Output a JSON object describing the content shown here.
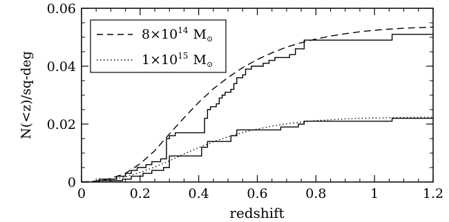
{
  "chart_data": {
    "type": "line",
    "xlabel": "redshift",
    "ylabel": "N(<z)/sq-deg",
    "xlim": [
      0,
      1.2
    ],
    "ylim": [
      0,
      0.06
    ],
    "x_ticks": [
      "0",
      "0.2",
      "0.4",
      "0.6",
      "0.8",
      "1",
      "1.2"
    ],
    "y_ticks": [
      "0",
      "0.02",
      "0.04",
      "0.06"
    ],
    "legend_position": "top-left",
    "legend": [
      {
        "style": "dashed",
        "label_prefix": "8×10",
        "label_exp": "14",
        "label_unit": "M",
        "label_sub": "⊙"
      },
      {
        "style": "dotted",
        "label_prefix": "1×10",
        "label_exp": "15",
        "label_unit": "M",
        "label_sub": "⊙"
      }
    ],
    "series": [
      {
        "style": "dashed",
        "x": [
          0,
          0.05,
          0.1,
          0.15,
          0.2,
          0.25,
          0.3,
          0.35,
          0.4,
          0.45,
          0.5,
          0.55,
          0.6,
          0.65,
          0.7,
          0.75,
          0.8,
          0.85,
          0.9,
          0.95,
          1.0,
          1.05,
          1.1,
          1.15,
          1.2
        ],
        "y": [
          0,
          0.0003,
          0.0012,
          0.003,
          0.0063,
          0.0108,
          0.0166,
          0.0222,
          0.0275,
          0.0322,
          0.0361,
          0.0395,
          0.0423,
          0.0446,
          0.0466,
          0.0481,
          0.0494,
          0.0504,
          0.0512,
          0.0519,
          0.0524,
          0.0528,
          0.0531,
          0.0533,
          0.0535
        ]
      },
      {
        "style": "dotted",
        "x": [
          0,
          0.05,
          0.1,
          0.15,
          0.2,
          0.25,
          0.3,
          0.35,
          0.4,
          0.45,
          0.5,
          0.55,
          0.6,
          0.65,
          0.7,
          0.75,
          0.8,
          0.85,
          0.9,
          0.95,
          1.0,
          1.05,
          1.1,
          1.15,
          1.2
        ],
        "y": [
          0,
          0.0002,
          0.0008,
          0.0018,
          0.0033,
          0.0052,
          0.0073,
          0.0097,
          0.0119,
          0.0139,
          0.0156,
          0.0171,
          0.0183,
          0.0193,
          0.0201,
          0.0207,
          0.0212,
          0.0215,
          0.0218,
          0.022,
          0.0221,
          0.0222,
          0.0223,
          0.0223,
          0.0224
        ]
      },
      {
        "style": "step-solid",
        "x": [
          0.06,
          0.12,
          0.15,
          0.17,
          0.19,
          0.22,
          0.24,
          0.27,
          0.29,
          0.3,
          0.32,
          0.42,
          0.43,
          0.44,
          0.46,
          0.47,
          0.48,
          0.49,
          0.51,
          0.52,
          0.53,
          0.55,
          0.56,
          0.58,
          0.62,
          0.64,
          0.66,
          0.71,
          0.73,
          0.76,
          1.06,
          1.2
        ],
        "y": [
          0.001,
          0.002,
          0.003,
          0.004,
          0.005,
          0.006,
          0.007,
          0.008,
          0.015,
          0.016,
          0.017,
          0.022,
          0.025,
          0.026,
          0.027,
          0.029,
          0.03,
          0.031,
          0.032,
          0.034,
          0.036,
          0.037,
          0.039,
          0.04,
          0.041,
          0.042,
          0.043,
          0.044,
          0.046,
          0.049,
          0.051,
          0.051
        ]
      },
      {
        "style": "step-solid",
        "x": [
          0.06,
          0.14,
          0.17,
          0.21,
          0.24,
          0.28,
          0.3,
          0.41,
          0.43,
          0.51,
          0.53,
          0.68,
          0.74,
          0.76,
          1.06,
          1.2
        ],
        "y": [
          0.0005,
          0.001,
          0.002,
          0.003,
          0.004,
          0.005,
          0.009,
          0.012,
          0.014,
          0.016,
          0.018,
          0.019,
          0.02,
          0.021,
          0.022,
          0.022
        ]
      }
    ]
  }
}
